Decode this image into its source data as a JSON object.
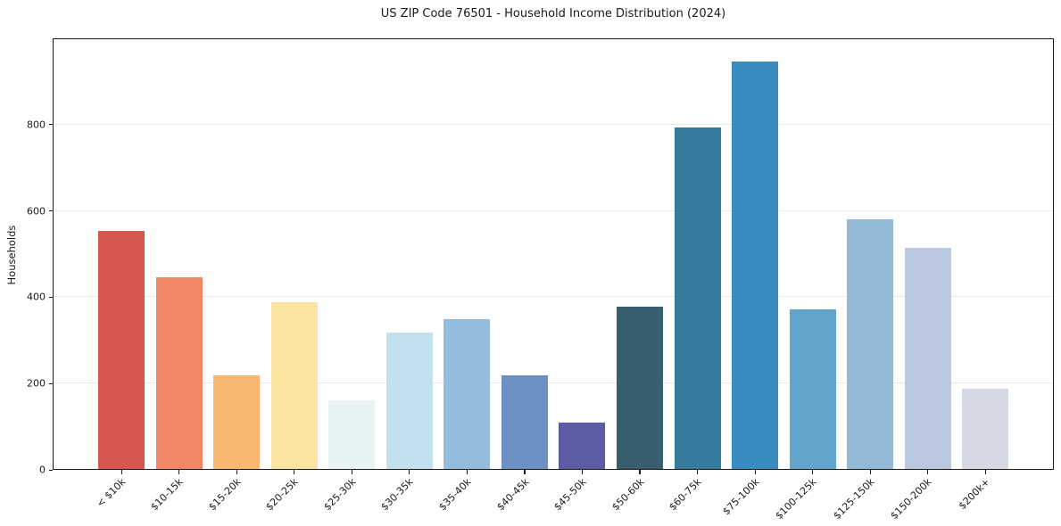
{
  "title": "US ZIP Code 76501 - Household Income Distribution (2024)",
  "chart_data": {
    "type": "bar",
    "title": "US ZIP Code 76501 - Household Income Distribution (2024)",
    "xlabel": "",
    "ylabel": "Households",
    "categories": [
      "< $10k",
      "$10-15k",
      "$15-20k",
      "$20-25k",
      "$25-30k",
      "$30-35k",
      "$35-40k",
      "$40-45k",
      "$45-50k",
      "$50-60k",
      "$60-75k",
      "$75-100k",
      "$100-125k",
      "$125-150k",
      "$150-200k",
      "$200k+"
    ],
    "values": [
      555,
      447,
      218,
      387,
      159,
      317,
      348,
      217,
      108,
      378,
      794,
      948,
      371,
      580,
      514,
      187
    ],
    "bar_colors": [
      "#d6574e",
      "#f18767",
      "#fab771",
      "#fde4a0",
      "#e8f4f4",
      "#c2e0ee",
      "#93bddf",
      "#6b90c4",
      "#5c5ba6",
      "#385f70",
      "#357b9e",
      "#388cc0",
      "#61a5cb",
      "#93b9d8",
      "#bac9e1",
      "#d6d8e4"
    ],
    "yticks": [
      0,
      200,
      400,
      600,
      800
    ],
    "ylim": [
      0,
      1000
    ],
    "grid": "horizontal-only",
    "legend": "none",
    "background_color": "#ffffff",
    "spine_color": "#1a1a1a",
    "grid_color": "#e9e9e9",
    "text_color": "#1a1a1a"
  }
}
